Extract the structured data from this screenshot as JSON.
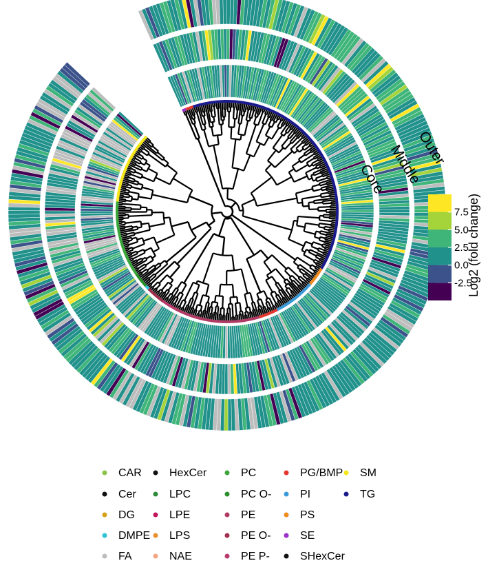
{
  "chart_data": {
    "type": "circular-dendrogram-heatmap",
    "title": "",
    "rings": [
      "Core",
      "Middle",
      "Outer"
    ],
    "colorbar": {
      "label": "Log2 (fold change)",
      "ticks": [
        7.5,
        5.0,
        2.5,
        0.0,
        -2.5
      ],
      "range": [
        -5,
        10
      ],
      "colors": [
        "#440154",
        "#3b528b",
        "#21918c",
        "#3fb57a",
        "#a5d33a",
        "#fde725"
      ],
      "bins": [
        -5,
        -2.5,
        0,
        2.5,
        5,
        7.5,
        10
      ],
      "na_color": "#bdbdbd"
    },
    "classes": [
      {
        "name": "CAR",
        "color": "#8bc34a",
        "count": 0
      },
      {
        "name": "Cer",
        "color": "#111111",
        "count": 0
      },
      {
        "name": "DG",
        "color": "#d4a017",
        "count": 0
      },
      {
        "name": "DMPE",
        "color": "#2ec4d6",
        "count": 2
      },
      {
        "name": "FA",
        "color": "#bdbdbd",
        "count": 0
      },
      {
        "name": "HexCer",
        "color": "#111111",
        "count": 0
      },
      {
        "name": "LPC",
        "color": "#2e8b3a",
        "count": 0
      },
      {
        "name": "LPE",
        "color": "#c2185b",
        "count": 0
      },
      {
        "name": "LPS",
        "color": "#e8902e",
        "count": 0
      },
      {
        "name": "NAE",
        "color": "#f4a582",
        "count": 0
      },
      {
        "name": "PC",
        "color": "#3aa63a",
        "count": 40
      },
      {
        "name": "PC O-",
        "color": "#2a8f2a",
        "count": 8
      },
      {
        "name": "PE",
        "color": "#b03a64",
        "count": 45
      },
      {
        "name": "PE O-",
        "color": "#a0304e",
        "count": 10
      },
      {
        "name": "PE P-",
        "color": "#b83a6a",
        "count": 8
      },
      {
        "name": "PG/BMP",
        "color": "#e5372f",
        "count": 14
      },
      {
        "name": "PI",
        "color": "#3a9ad9",
        "count": 22
      },
      {
        "name": "PS",
        "color": "#f08a1c",
        "count": 10
      },
      {
        "name": "SE",
        "color": "#9b30c8",
        "count": 2
      },
      {
        "name": "SHexCer",
        "color": "#111111",
        "count": 0
      },
      {
        "name": "SM",
        "color": "#f5e61a",
        "count": 38
      },
      {
        "name": "TG",
        "color": "#1a1a8c",
        "count": 140
      }
    ],
    "segment_order": [
      "SE",
      "PG/BMP",
      "TG",
      "PS",
      "PI",
      "PG/BMP",
      "PE",
      "PE P-",
      "PE O-",
      "DMPE",
      "PC O-",
      "PC",
      "SM"
    ],
    "segment_counts": [
      2,
      4,
      140,
      10,
      22,
      10,
      45,
      8,
      10,
      2,
      8,
      40,
      38
    ],
    "leaf_count": 339,
    "angular_span_deg": 337
  },
  "legend": {
    "columns": [
      [
        "CAR",
        "Cer",
        "DG",
        "DMPE",
        "FA"
      ],
      [
        "HexCer",
        "LPC",
        "LPE",
        "LPS",
        "NAE"
      ],
      [
        "PC",
        "PC O-",
        "PE",
        "PE O-",
        "PE P-"
      ],
      [
        "PG/BMP",
        "PI",
        "PS",
        "SE",
        "SHexCer"
      ],
      [
        "SM",
        "TG"
      ]
    ]
  }
}
